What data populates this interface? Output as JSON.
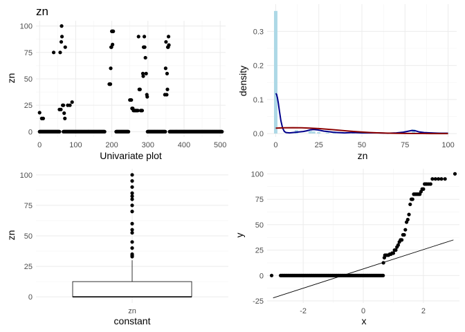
{
  "title": "zn",
  "colors": {
    "points": "#000000",
    "histogram_fill": "#add8e6",
    "density_line": "#00008b",
    "normal_line": "#8b0000",
    "box_outline": "#000000",
    "grid": "#ebebeb",
    "tick_text": "#4d4d4d"
  },
  "chart_data": [
    {
      "type": "scatter",
      "panel": "top-left",
      "title": "zn",
      "xlabel": "Univariate plot",
      "ylabel": "zn",
      "xlim": [
        -10,
        515
      ],
      "ylim": [
        -5,
        105
      ],
      "x_ticks": [
        0,
        100,
        200,
        300,
        400,
        500
      ],
      "x_tick_labels": [
        "0",
        "100",
        "200",
        "300",
        "400",
        "500"
      ],
      "y_ticks": [
        0,
        25,
        50,
        75,
        100
      ],
      "y_tick_labels": [
        "0",
        "25",
        "50",
        "75",
        "100"
      ],
      "grid": true,
      "zero_runs": [
        [
          0,
          55
        ],
        [
          66,
          180
        ],
        [
          212,
          246
        ],
        [
          299,
          348
        ],
        [
          360,
          505
        ]
      ],
      "nonzero_points": [
        [
          0,
          18
        ],
        [
          6,
          12.5
        ],
        [
          10,
          12.5
        ],
        [
          39,
          75
        ],
        [
          55,
          21
        ],
        [
          57,
          75
        ],
        [
          59,
          21
        ],
        [
          60,
          85
        ],
        [
          61,
          100
        ],
        [
          62,
          90
        ],
        [
          64,
          25
        ],
        [
          66,
          25
        ],
        [
          68,
          17.5
        ],
        [
          70,
          12.5
        ],
        [
          71,
          80
        ],
        [
          78,
          25
        ],
        [
          84,
          25
        ],
        [
          90,
          28
        ],
        [
          193,
          45
        ],
        [
          195,
          45
        ],
        [
          196,
          45
        ],
        [
          197,
          60
        ],
        [
          198,
          80
        ],
        [
          199,
          80
        ],
        [
          200,
          95
        ],
        [
          201,
          95
        ],
        [
          202,
          82.5
        ],
        [
          203,
          95
        ],
        [
          204,
          95
        ],
        [
          250,
          30
        ],
        [
          252,
          30
        ],
        [
          254,
          30
        ],
        [
          256,
          22
        ],
        [
          258,
          22
        ],
        [
          260,
          20
        ],
        [
          262,
          20
        ],
        [
          264,
          20
        ],
        [
          266,
          20
        ],
        [
          268,
          20
        ],
        [
          270,
          20
        ],
        [
          272,
          20
        ],
        [
          274,
          90
        ],
        [
          276,
          40
        ],
        [
          278,
          40
        ],
        [
          280,
          20
        ],
        [
          282,
          20
        ],
        [
          284,
          20
        ],
        [
          286,
          55
        ],
        [
          287,
          52.5
        ],
        [
          288,
          80
        ],
        [
          289,
          80
        ],
        [
          290,
          90
        ],
        [
          291,
          80
        ],
        [
          293,
          70
        ],
        [
          295,
          55
        ],
        [
          297,
          35
        ],
        [
          298,
          33
        ],
        [
          347,
          35
        ],
        [
          349,
          60
        ],
        [
          350,
          85
        ],
        [
          352,
          35
        ],
        [
          353,
          55
        ],
        [
          354,
          40
        ],
        [
          355,
          80
        ],
        [
          356,
          80
        ],
        [
          357,
          90
        ],
        [
          358,
          82
        ]
      ]
    },
    {
      "type": "area",
      "panel": "top-right",
      "title": "",
      "xlabel": "zn",
      "ylabel": "density",
      "xlim": [
        -5,
        105
      ],
      "ylim": [
        -0.01,
        0.38
      ],
      "x_ticks": [
        0,
        25,
        50,
        75,
        100
      ],
      "x_tick_labels": [
        "0",
        "25",
        "50",
        "75",
        "100"
      ],
      "y_ticks": [
        0,
        0.1,
        0.2,
        0.3
      ],
      "y_tick_labels": [
        "0.0",
        "0.1",
        "0.2",
        "0.3"
      ],
      "grid": true,
      "histogram": {
        "bins": [
          {
            "x0": -1,
            "x1": 1,
            "density": 0.36
          },
          {
            "x0": 11,
            "x1": 13,
            "density": 0.01
          },
          {
            "x0": 19,
            "x1": 21,
            "density": 0.008
          },
          {
            "x0": 21,
            "x1": 23,
            "density": 0.006
          },
          {
            "x0": 24,
            "x1": 26,
            "density": 0.004
          },
          {
            "x0": 29,
            "x1": 31,
            "density": 0.003
          },
          {
            "x0": 33,
            "x1": 35,
            "density": 0.003
          },
          {
            "x0": 39,
            "x1": 41,
            "density": 0.003
          },
          {
            "x0": 44,
            "x1": 46,
            "density": 0.003
          },
          {
            "x0": 54,
            "x1": 56,
            "density": 0.002
          },
          {
            "x0": 59,
            "x1": 61,
            "density": 0.001
          },
          {
            "x0": 69,
            "x1": 71,
            "density": 0.001
          },
          {
            "x0": 74,
            "x1": 76,
            "density": 0.001
          },
          {
            "x0": 79,
            "x1": 81,
            "density": 0.012
          },
          {
            "x0": 84,
            "x1": 86,
            "density": 0.002
          },
          {
            "x0": 89,
            "x1": 91,
            "density": 0.004
          },
          {
            "x0": 94,
            "x1": 96,
            "density": 0.003
          },
          {
            "x0": 99,
            "x1": 101,
            "density": 0.001
          }
        ]
      },
      "series": [
        {
          "name": "",
          "role": "kernel-density",
          "x": [
            0,
            0.5,
            1,
            1.5,
            2,
            3,
            4,
            5,
            6,
            8,
            10,
            12,
            14,
            16,
            18,
            20,
            22,
            24,
            26,
            28,
            30,
            33,
            36,
            40,
            45,
            50,
            55,
            60,
            65,
            70,
            74,
            77,
            79,
            81,
            83,
            86,
            90,
            95,
            100
          ],
          "y": [
            0.118,
            0.115,
            0.105,
            0.09,
            0.072,
            0.038,
            0.016,
            0.006,
            0.003,
            0.002,
            0.003,
            0.004,
            0.005,
            0.006,
            0.008,
            0.011,
            0.012,
            0.011,
            0.009,
            0.007,
            0.006,
            0.004,
            0.003,
            0.002,
            0.003,
            0.002,
            0.002,
            0.002,
            0.001,
            0.002,
            0.004,
            0.007,
            0.009,
            0.008,
            0.005,
            0.003,
            0.002,
            0.001,
            0.001
          ]
        },
        {
          "name": "",
          "role": "normal-density",
          "x": [
            0,
            5,
            10,
            15,
            20,
            25,
            30,
            35,
            40,
            45,
            50,
            55,
            60,
            65,
            70,
            75,
            80,
            85,
            90,
            95,
            100
          ],
          "y": [
            0.0157,
            0.0168,
            0.0173,
            0.017,
            0.016,
            0.0145,
            0.0126,
            0.0105,
            0.0083,
            0.0063,
            0.0045,
            0.0031,
            0.002,
            0.0012,
            0.0007,
            0.0004,
            0.0002,
            0.0001,
            0.0,
            0.0,
            0.0
          ]
        }
      ]
    },
    {
      "type": "box",
      "panel": "bottom-left",
      "title": "",
      "xlabel": "constant",
      "ylabel": "zn",
      "categories": [
        "zn"
      ],
      "ylim": [
        -5,
        105
      ],
      "y_ticks": [
        0,
        25,
        50,
        75,
        100
      ],
      "y_tick_labels": [
        "0",
        "25",
        "50",
        "75",
        "100"
      ],
      "grid": true,
      "box": {
        "min": 0,
        "q1": 0,
        "median": 0,
        "q3": 12.5,
        "whisker_high": 30
      },
      "outliers": [
        33,
        34,
        35,
        40,
        45,
        52.5,
        55,
        60,
        70,
        75,
        80,
        82.5,
        85,
        90,
        95,
        100
      ]
    },
    {
      "type": "scatter",
      "panel": "bottom-right",
      "title": "",
      "xlabel": "x",
      "ylabel": "y",
      "xlim": [
        -3.2,
        3.2
      ],
      "ylim": [
        -27,
        105
      ],
      "x_ticks": [
        -2,
        0,
        2
      ],
      "x_tick_labels": [
        "-2",
        "0",
        "2"
      ],
      "y_ticks": [
        -25,
        0,
        25,
        50,
        75,
        100
      ],
      "y_tick_labels": [
        "-25",
        "0",
        "25",
        "50",
        "75",
        "100"
      ],
      "grid": true,
      "reference_line": {
        "x": [
          -3.0,
          3.0
        ],
        "y": [
          -22,
          35
        ]
      },
      "zero_run": {
        "x_start": -2.75,
        "x_end": 0.66,
        "y": 0
      },
      "points": [
        [
          -3.05,
          0
        ],
        [
          0.67,
          12.5
        ],
        [
          0.7,
          17.5
        ],
        [
          0.72,
          20
        ],
        [
          0.76,
          20
        ],
        [
          0.8,
          20
        ],
        [
          0.84,
          20
        ],
        [
          0.88,
          21
        ],
        [
          0.92,
          21
        ],
        [
          0.96,
          22
        ],
        [
          1.0,
          22
        ],
        [
          1.04,
          25
        ],
        [
          1.08,
          25
        ],
        [
          1.12,
          28
        ],
        [
          1.16,
          30
        ],
        [
          1.2,
          33
        ],
        [
          1.24,
          35
        ],
        [
          1.28,
          35
        ],
        [
          1.32,
          40
        ],
        [
          1.36,
          40
        ],
        [
          1.4,
          45
        ],
        [
          1.44,
          52.5
        ],
        [
          1.48,
          55
        ],
        [
          1.52,
          60
        ],
        [
          1.56,
          70
        ],
        [
          1.6,
          75
        ],
        [
          1.64,
          75
        ],
        [
          1.68,
          80
        ],
        [
          1.72,
          80
        ],
        [
          1.76,
          80
        ],
        [
          1.8,
          80
        ],
        [
          1.84,
          80
        ],
        [
          1.88,
          80
        ],
        [
          1.92,
          82.5
        ],
        [
          1.96,
          85
        ],
        [
          2.0,
          85
        ],
        [
          2.04,
          90
        ],
        [
          2.08,
          90
        ],
        [
          2.12,
          90
        ],
        [
          2.18,
          90
        ],
        [
          2.24,
          90
        ],
        [
          2.3,
          95
        ],
        [
          2.4,
          95
        ],
        [
          2.5,
          95
        ],
        [
          2.6,
          95
        ],
        [
          2.72,
          95
        ],
        [
          3.05,
          100
        ]
      ]
    }
  ]
}
